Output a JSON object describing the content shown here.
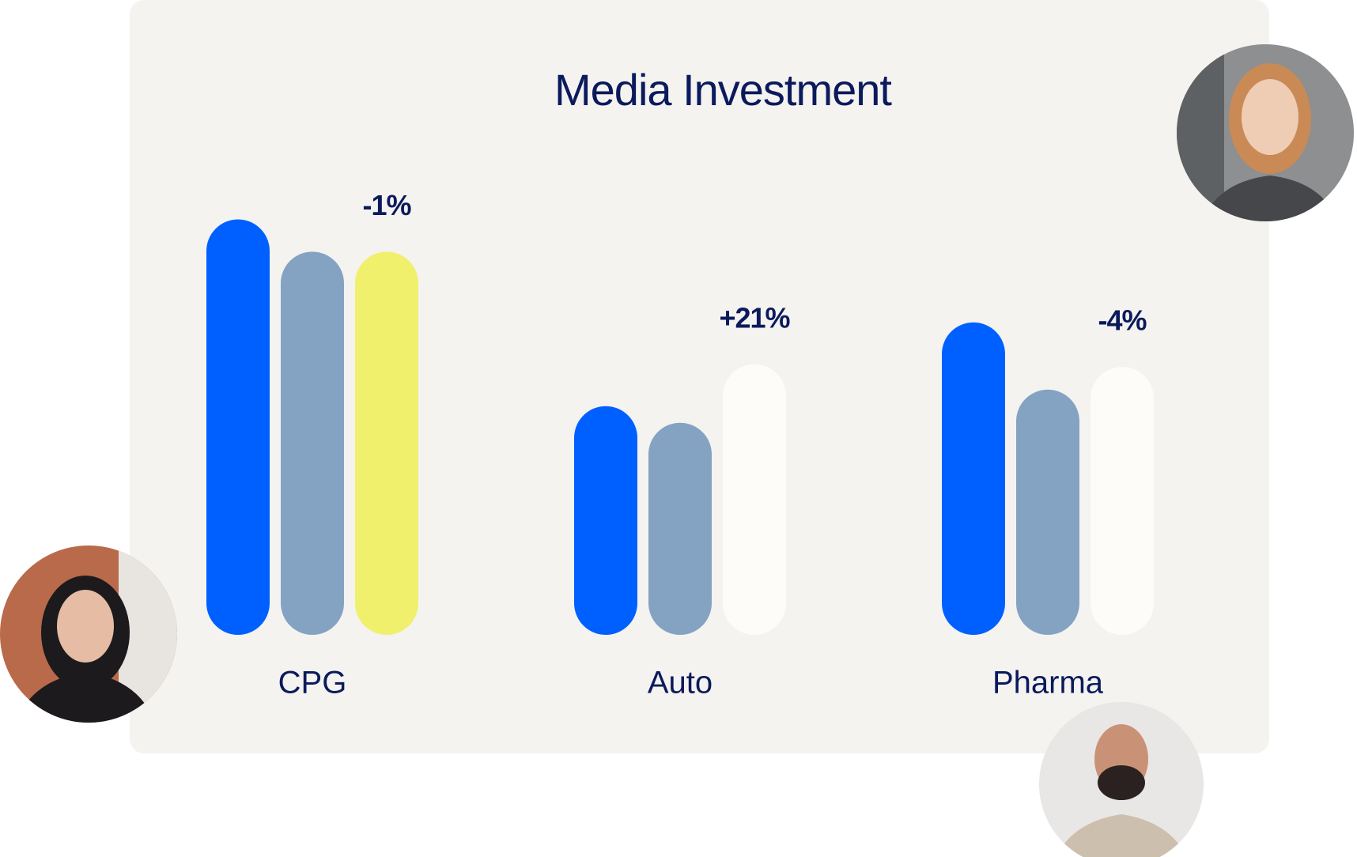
{
  "chart_data": {
    "type": "bar",
    "title": "Media Investment",
    "categories": [
      "CPG",
      "Auto",
      "Pharma"
    ],
    "series": [
      {
        "color": "#0060ff",
        "values": [
          476,
          262,
          358
        ]
      },
      {
        "color": "#84a3c3",
        "values": [
          439,
          243,
          281
        ]
      },
      {
        "colors": [
          "#f0f06c",
          "#fdfcf8",
          "#fdfcf8"
        ],
        "values": [
          439,
          310,
          307
        ]
      }
    ],
    "annotations": [
      "-1%",
      "+21%",
      "-4%"
    ],
    "ylim": [
      0,
      500
    ]
  }
}
